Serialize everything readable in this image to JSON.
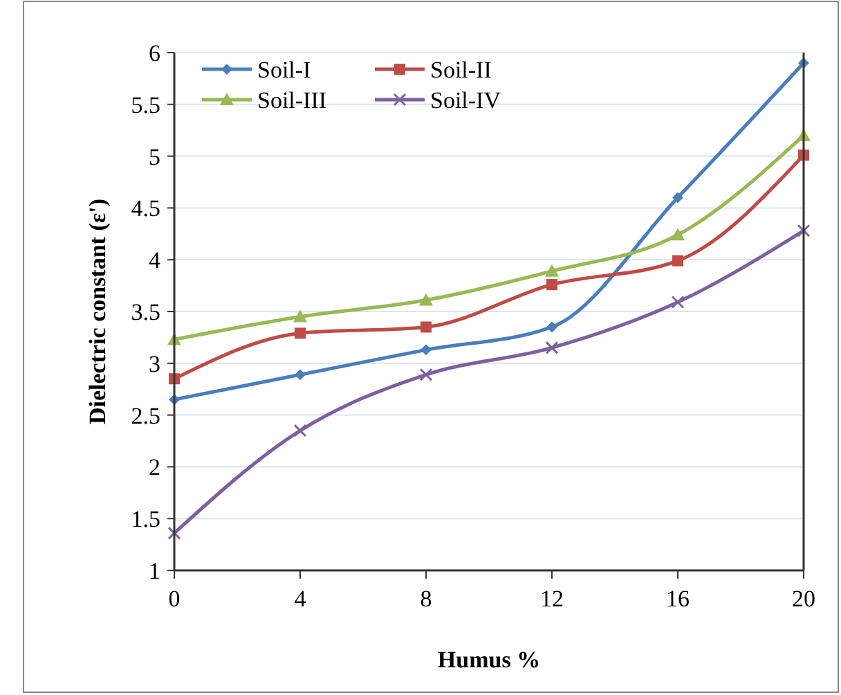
{
  "chart_data": {
    "type": "line",
    "xlabel": "Humus  %",
    "ylabel": "Dielectric constant (ε')",
    "x": [
      0,
      4,
      8,
      12,
      16,
      20
    ],
    "series": [
      {
        "name": "Soil-I",
        "color": "#4a7ebb",
        "marker": "diamond",
        "values": [
          2.65,
          2.89,
          3.13,
          3.35,
          4.6,
          5.9
        ]
      },
      {
        "name": "Soil-II",
        "color": "#be4b48",
        "marker": "square",
        "values": [
          2.85,
          3.29,
          3.35,
          3.76,
          3.99,
          5.01
        ]
      },
      {
        "name": "Soil-III",
        "color": "#98b954",
        "marker": "triangle",
        "values": [
          3.23,
          3.45,
          3.61,
          3.89,
          4.24,
          5.2
        ]
      },
      {
        "name": "Soil-IV",
        "color": "#7d60a0",
        "marker": "cross",
        "values": [
          1.36,
          2.35,
          2.89,
          3.15,
          3.59,
          4.28
        ]
      }
    ],
    "xlim": [
      0,
      20
    ],
    "xticks": [
      0,
      4,
      8,
      12,
      16,
      20
    ],
    "ylim": [
      1,
      6
    ],
    "yticks": [
      1,
      1.5,
      2,
      2.5,
      3,
      3.5,
      4,
      4.5,
      5,
      5.5,
      6
    ],
    "grid": "y",
    "legend": "top left",
    "line_style": "solid"
  }
}
